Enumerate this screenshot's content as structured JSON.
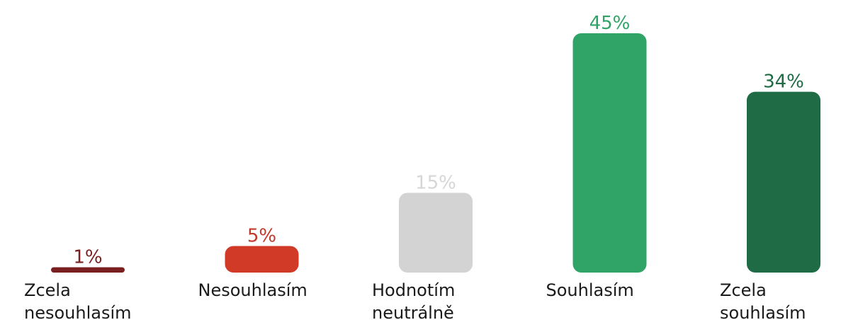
{
  "chart_data": {
    "type": "bar",
    "categories": [
      [
        "Zcela",
        "nesouhlasím"
      ],
      [
        "Nesouhlasím"
      ],
      [
        "Hodnotím",
        "neutrálně"
      ],
      [
        "Souhlasím"
      ],
      [
        "Zcela",
        "souhlasím"
      ]
    ],
    "values": [
      1,
      5,
      15,
      45,
      34
    ],
    "value_labels": [
      "1%",
      "5%",
      "15%",
      "45%",
      "34%"
    ],
    "colors": [
      "#7a1f1f",
      "#d03a26",
      "#d3d3d3",
      "#2fa466",
      "#1e6b45"
    ],
    "label_colors": [
      "#7a1f1f",
      "#c0392b",
      "#d6d6d6",
      "#2fa466",
      "#1e6b45"
    ],
    "ylim": [
      0,
      45
    ],
    "grid": false,
    "legend": "none"
  }
}
